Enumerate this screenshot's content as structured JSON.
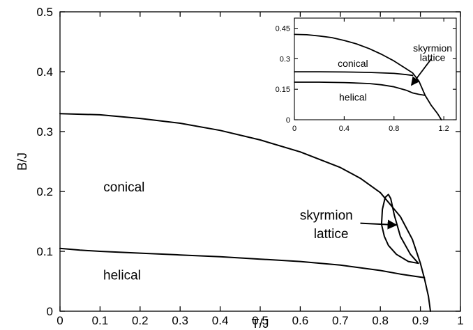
{
  "chart_data": [
    {
      "type": "line",
      "xlabel": "T/J",
      "ylabel": "B/J",
      "xlim": [
        0,
        1
      ],
      "ylim": [
        0,
        0.5
      ],
      "xticks": [
        0,
        0.1,
        0.2,
        0.3,
        0.4,
        0.5,
        0.6,
        0.7,
        0.8,
        0.9,
        1
      ],
      "xtick_labels": [
        "0",
        "0.1",
        "0.2",
        "0.3",
        "0.4",
        "0.5",
        "0.6",
        "0.7",
        "0.8",
        "0.9",
        "1"
      ],
      "yticks": [
        0,
        0.1,
        0.2,
        0.3,
        0.4,
        0.5
      ],
      "ytick_labels": [
        "0",
        "0.1",
        "0.2",
        "0.3",
        "0.4",
        "0.5"
      ],
      "grid": false,
      "series": [
        {
          "x": [
            0,
            0.1,
            0.2,
            0.3,
            0.4,
            0.5,
            0.6,
            0.7,
            0.75,
            0.8,
            0.85,
            0.88,
            0.9,
            0.91,
            0.92,
            0.925
          ],
          "y": [
            0.33,
            0.328,
            0.322,
            0.314,
            0.302,
            0.286,
            0.266,
            0.24,
            0.222,
            0.198,
            0.158,
            0.12,
            0.08,
            0.055,
            0.025,
            0
          ]
        },
        {
          "x": [
            0,
            0.05,
            0.1,
            0.2,
            0.3,
            0.4,
            0.5,
            0.6,
            0.7,
            0.8,
            0.85,
            0.9,
            0.91
          ],
          "y": [
            0.105,
            0.102,
            0.1,
            0.097,
            0.094,
            0.091,
            0.087,
            0.083,
            0.077,
            0.068,
            0.062,
            0.057,
            0.056
          ]
        },
        {
          "x": [
            0.895,
            0.87,
            0.84,
            0.82,
            0.81,
            0.803,
            0.805,
            0.812,
            0.82,
            0.826,
            0.835,
            0.85,
            0.875,
            0.895
          ],
          "y": [
            0.08,
            0.083,
            0.095,
            0.11,
            0.125,
            0.145,
            0.17,
            0.19,
            0.195,
            0.188,
            0.16,
            0.125,
            0.095,
            0.08
          ]
        }
      ],
      "annotations": [
        {
          "text": "conical",
          "x": 0.16,
          "y": 0.2
        },
        {
          "text": "helical",
          "x": 0.155,
          "y": 0.053
        },
        {
          "text": "skyrmion",
          "x": 0.665,
          "y": 0.153
        },
        {
          "text": "lattice",
          "x": 0.677,
          "y": 0.122
        }
      ],
      "arrows": [
        {
          "from": [
            0.75,
            0.147
          ],
          "to": [
            0.84,
            0.144
          ]
        }
      ]
    },
    {
      "type": "line",
      "inset": true,
      "xlim": [
        0,
        1.3
      ],
      "ylim": [
        0,
        0.5
      ],
      "xticks": [
        0,
        0.4,
        0.8,
        1.2
      ],
      "xtick_labels": [
        "0",
        "0.4",
        "0.8",
        "1.2"
      ],
      "yticks": [
        0,
        0.15,
        0.3,
        0.45
      ],
      "ytick_labels": [
        "0",
        "0.15",
        "0.3",
        "0.45"
      ],
      "grid": false,
      "series": [
        {
          "x": [
            0,
            0.1,
            0.2,
            0.3,
            0.4,
            0.5,
            0.6,
            0.7,
            0.8,
            0.9,
            0.95,
            1.0,
            1.05,
            1.1,
            1.15,
            1.18
          ],
          "y": [
            0.42,
            0.418,
            0.412,
            0.404,
            0.39,
            0.373,
            0.35,
            0.322,
            0.289,
            0.25,
            0.23,
            0.19,
            0.12,
            0.07,
            0.03,
            0
          ]
        },
        {
          "x": [
            0,
            0.2,
            0.4,
            0.6,
            0.8,
            0.9,
            0.95
          ],
          "y": [
            0.236,
            0.236,
            0.235,
            0.233,
            0.228,
            0.222,
            0.218
          ]
        },
        {
          "x": [
            0,
            0.2,
            0.4,
            0.6,
            0.7,
            0.8,
            0.9,
            0.95,
            1.0,
            1.03,
            1.05
          ],
          "y": [
            0.185,
            0.185,
            0.183,
            0.178,
            0.172,
            0.162,
            0.145,
            0.132,
            0.125,
            0.122,
            0.12
          ]
        }
      ],
      "annotations": [
        {
          "text": "skyrmion",
          "x": 1.11,
          "y": 0.335
        },
        {
          "text": "lattice",
          "x": 1.11,
          "y": 0.29
        },
        {
          "text": "conical",
          "x": 0.47,
          "y": 0.26
        },
        {
          "text": "helical",
          "x": 0.47,
          "y": 0.095
        }
      ],
      "arrows": [
        {
          "from": [
            1.1,
            0.3
          ],
          "to": [
            0.94,
            0.17
          ]
        }
      ]
    }
  ]
}
